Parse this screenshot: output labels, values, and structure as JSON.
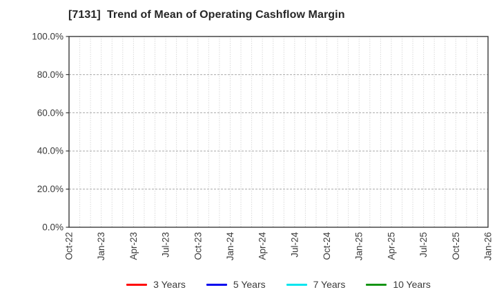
{
  "page": {
    "background": "#ffffff"
  },
  "chart_data": {
    "type": "line",
    "title": "[7131]  Trend of Mean of Operating Cashflow Margin",
    "x_tick_labels": [
      "Oct-22",
      "Jan-23",
      "Apr-23",
      "Jul-23",
      "Oct-23",
      "Jan-24",
      "Apr-24",
      "Jul-24",
      "Oct-24",
      "Jan-25",
      "Apr-25",
      "Jul-25",
      "Oct-25",
      "Jan-26"
    ],
    "x_minor_per_interval": 3,
    "y_ticks": [
      0,
      20,
      40,
      60,
      80,
      100
    ],
    "y_tick_labels": [
      "0.0%",
      "20.0%",
      "40.0%",
      "60.0%",
      "80.0%",
      "100.0%"
    ],
    "ylim": [
      0,
      100
    ],
    "grid": true,
    "legend_position": "bottom",
    "has_plotted_data": false,
    "series": [
      {
        "name": "3 Years",
        "color": "#ff0000",
        "x": [],
        "values": []
      },
      {
        "name": "5 Years",
        "color": "#0000ee",
        "x": [],
        "values": []
      },
      {
        "name": "7 Years",
        "color": "#00e5ee",
        "x": [],
        "values": []
      },
      {
        "name": "10 Years",
        "color": "#149414",
        "x": [],
        "values": []
      }
    ]
  }
}
